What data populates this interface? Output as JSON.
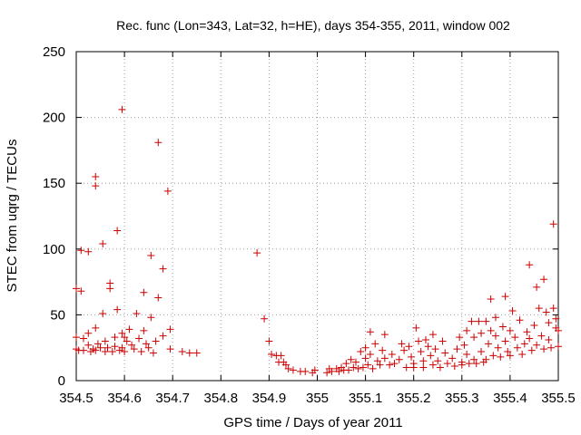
{
  "chart_data": {
    "type": "scatter",
    "title": "Rec. func (Lon=343, Lat=32, h=HE), days 354-355, 2011, window 002",
    "xlabel": "GPS time / Days of year 2011",
    "ylabel": "STEC from uqrg / TECUs",
    "xlim": [
      354.5,
      355.5
    ],
    "ylim": [
      0,
      250
    ],
    "xticks": [
      "354.5",
      "354.6",
      "354.7",
      "354.8",
      "354.9",
      "355",
      "355.1",
      "355.2",
      "355.3",
      "355.4",
      "355.5"
    ],
    "yticks": [
      "0",
      "50",
      "100",
      "150",
      "200",
      "250"
    ],
    "grid": true,
    "marker": "+",
    "marker_color": "#cc0000",
    "points": [
      [
        354.5,
        70
      ],
      [
        354.5,
        33
      ],
      [
        354.5,
        24
      ],
      [
        354.505,
        23
      ],
      [
        354.51,
        99
      ],
      [
        354.51,
        68
      ],
      [
        354.515,
        32
      ],
      [
        354.515,
        23
      ],
      [
        354.525,
        98
      ],
      [
        354.525,
        36
      ],
      [
        354.525,
        27
      ],
      [
        354.53,
        22
      ],
      [
        354.535,
        24
      ],
      [
        354.54,
        155
      ],
      [
        354.54,
        148
      ],
      [
        354.54,
        40
      ],
      [
        354.54,
        23
      ],
      [
        354.545,
        28
      ],
      [
        354.55,
        25
      ],
      [
        354.555,
        104
      ],
      [
        354.555,
        51
      ],
      [
        354.56,
        30
      ],
      [
        354.56,
        22
      ],
      [
        354.565,
        25
      ],
      [
        354.57,
        74
      ],
      [
        354.57,
        70
      ],
      [
        354.575,
        22
      ],
      [
        354.58,
        33
      ],
      [
        354.58,
        26
      ],
      [
        354.585,
        114
      ],
      [
        354.585,
        54
      ],
      [
        354.59,
        23
      ],
      [
        354.595,
        206
      ],
      [
        354.595,
        36
      ],
      [
        354.595,
        25
      ],
      [
        354.6,
        33
      ],
      [
        354.6,
        22
      ],
      [
        354.605,
        30
      ],
      [
        354.61,
        39
      ],
      [
        354.615,
        27
      ],
      [
        354.62,
        24
      ],
      [
        354.625,
        51
      ],
      [
        354.63,
        32
      ],
      [
        354.635,
        22
      ],
      [
        354.64,
        67
      ],
      [
        354.64,
        38
      ],
      [
        354.645,
        28
      ],
      [
        354.65,
        25
      ],
      [
        354.655,
        95
      ],
      [
        354.655,
        48
      ],
      [
        354.66,
        21
      ],
      [
        354.665,
        30
      ],
      [
        354.67,
        181
      ],
      [
        354.67,
        63
      ],
      [
        354.68,
        85
      ],
      [
        354.68,
        34
      ],
      [
        354.69,
        144
      ],
      [
        354.695,
        39
      ],
      [
        354.695,
        24
      ],
      [
        354.72,
        22
      ],
      [
        354.735,
        21
      ],
      [
        354.75,
        21
      ],
      [
        354.875,
        97
      ],
      [
        354.89,
        47
      ],
      [
        354.9,
        30
      ],
      [
        354.905,
        20
      ],
      [
        354.915,
        19
      ],
      [
        354.92,
        14
      ],
      [
        354.925,
        19
      ],
      [
        354.93,
        14
      ],
      [
        354.935,
        12
      ],
      [
        354.94,
        9
      ],
      [
        354.95,
        8
      ],
      [
        354.965,
        7
      ],
      [
        354.975,
        7
      ],
      [
        354.99,
        6
      ],
      [
        354.995,
        8
      ],
      [
        355.02,
        6
      ],
      [
        355.025,
        9
      ],
      [
        355.03,
        7
      ],
      [
        355.04,
        9
      ],
      [
        355.045,
        7
      ],
      [
        355.05,
        10
      ],
      [
        355.055,
        8
      ],
      [
        355.06,
        13
      ],
      [
        355.065,
        8
      ],
      [
        355.07,
        16
      ],
      [
        355.075,
        10
      ],
      [
        355.08,
        14
      ],
      [
        355.085,
        9
      ],
      [
        355.09,
        22
      ],
      [
        355.095,
        10
      ],
      [
        355.1,
        25
      ],
      [
        355.1,
        17
      ],
      [
        355.105,
        12
      ],
      [
        355.11,
        37
      ],
      [
        355.11,
        20
      ],
      [
        355.115,
        9
      ],
      [
        355.12,
        28
      ],
      [
        355.125,
        15
      ],
      [
        355.13,
        12
      ],
      [
        355.135,
        23
      ],
      [
        355.14,
        35
      ],
      [
        355.14,
        17
      ],
      [
        355.15,
        12
      ],
      [
        355.155,
        20
      ],
      [
        355.16,
        13
      ],
      [
        355.17,
        16
      ],
      [
        355.175,
        28
      ],
      [
        355.18,
        23
      ],
      [
        355.185,
        10
      ],
      [
        355.19,
        26
      ],
      [
        355.195,
        18
      ],
      [
        355.2,
        13
      ],
      [
        355.2,
        10
      ],
      [
        355.205,
        40
      ],
      [
        355.21,
        30
      ],
      [
        355.215,
        22
      ],
      [
        355.22,
        15
      ],
      [
        355.22,
        10
      ],
      [
        355.225,
        31
      ],
      [
        355.23,
        26
      ],
      [
        355.235,
        19
      ],
      [
        355.24,
        35
      ],
      [
        355.24,
        12
      ],
      [
        355.245,
        24
      ],
      [
        355.25,
        15
      ],
      [
        355.255,
        10
      ],
      [
        355.26,
        30
      ],
      [
        355.265,
        21
      ],
      [
        355.27,
        13
      ],
      [
        355.28,
        17
      ],
      [
        355.285,
        11
      ],
      [
        355.29,
        24
      ],
      [
        355.295,
        33
      ],
      [
        355.3,
        14
      ],
      [
        355.3,
        12
      ],
      [
        355.305,
        27
      ],
      [
        355.31,
        38
      ],
      [
        355.31,
        20
      ],
      [
        355.315,
        13
      ],
      [
        355.32,
        45
      ],
      [
        355.325,
        33
      ],
      [
        355.325,
        16
      ],
      [
        355.33,
        13
      ],
      [
        355.335,
        45
      ],
      [
        355.34,
        36
      ],
      [
        355.34,
        22
      ],
      [
        355.345,
        14
      ],
      [
        355.35,
        45
      ],
      [
        355.35,
        16
      ],
      [
        355.355,
        28
      ],
      [
        355.36,
        62
      ],
      [
        355.36,
        38
      ],
      [
        355.365,
        19
      ],
      [
        355.37,
        48
      ],
      [
        355.37,
        34
      ],
      [
        355.375,
        25
      ],
      [
        355.38,
        18
      ],
      [
        355.385,
        41
      ],
      [
        355.39,
        64
      ],
      [
        355.39,
        30
      ],
      [
        355.395,
        22
      ],
      [
        355.4,
        38
      ],
      [
        355.4,
        19
      ],
      [
        355.405,
        53
      ],
      [
        355.41,
        33
      ],
      [
        355.415,
        25
      ],
      [
        355.42,
        46
      ],
      [
        355.425,
        20
      ],
      [
        355.43,
        28
      ],
      [
        355.435,
        37
      ],
      [
        355.44,
        88
      ],
      [
        355.44,
        32
      ],
      [
        355.445,
        23
      ],
      [
        355.45,
        42
      ],
      [
        355.455,
        71
      ],
      [
        355.455,
        27
      ],
      [
        355.46,
        55
      ],
      [
        355.465,
        34
      ],
      [
        355.47,
        77
      ],
      [
        355.47,
        24
      ],
      [
        355.475,
        52
      ],
      [
        355.48,
        44
      ],
      [
        355.48,
        31
      ],
      [
        355.485,
        25
      ],
      [
        355.49,
        119
      ],
      [
        355.49,
        55
      ],
      [
        355.495,
        47
      ],
      [
        355.495,
        40
      ],
      [
        355.5,
        38
      ],
      [
        355.5,
        26
      ]
    ]
  }
}
